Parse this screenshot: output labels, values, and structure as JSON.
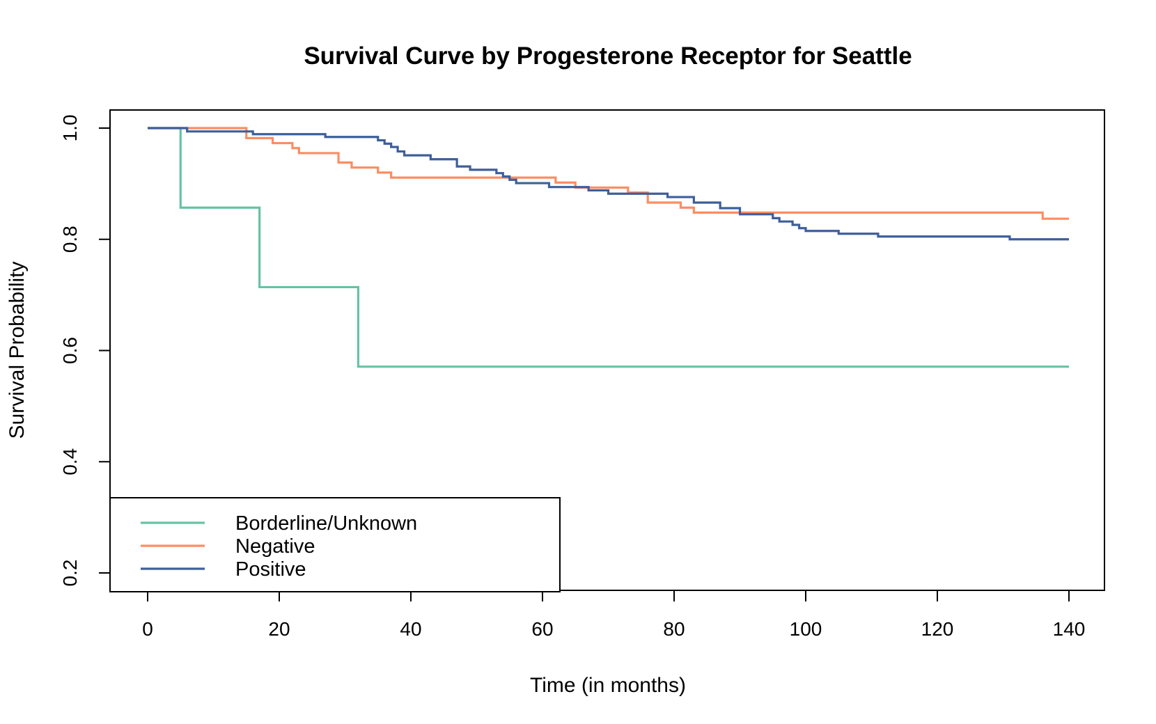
{
  "chart_data": {
    "type": "line",
    "step": true,
    "title": "Survival Curve by Progesterone Receptor for Seattle",
    "xlabel": "Time (in months)",
    "ylabel": "Survival Probability",
    "xlim": [
      0,
      140
    ],
    "ylim": [
      0.2,
      1.0
    ],
    "x_ticks": [
      0,
      20,
      40,
      60,
      80,
      100,
      120,
      140
    ],
    "y_ticks": [
      0.2,
      0.4,
      0.6,
      0.8,
      1.0
    ],
    "x_tick_labels": [
      "0",
      "20",
      "40",
      "60",
      "80",
      "100",
      "120",
      "140"
    ],
    "y_tick_labels": [
      "0.2",
      "0.4",
      "0.6",
      "0.8",
      "1.0"
    ],
    "grid": false,
    "legend": {
      "position": "bottom-left"
    },
    "series": [
      {
        "name": "Borderline/Unknown",
        "color": "#66c2a5",
        "x": [
          0,
          5,
          17,
          32,
          140
        ],
        "y": [
          1.0,
          0.857,
          0.714,
          0.571,
          0.571
        ]
      },
      {
        "name": "Negative",
        "color": "#fc8d62",
        "x": [
          0,
          6,
          15,
          19,
          22,
          23,
          29,
          31,
          35,
          37,
          62,
          65,
          73,
          76,
          81,
          83,
          91,
          136,
          140
        ],
        "y": [
          1.0,
          1.0,
          0.982,
          0.973,
          0.964,
          0.955,
          0.938,
          0.929,
          0.92,
          0.911,
          0.902,
          0.893,
          0.884,
          0.866,
          0.857,
          0.848,
          0.848,
          0.837,
          0.837
        ]
      },
      {
        "name": "Positive",
        "color": "#3d5f99",
        "x": [
          0,
          6,
          16,
          27,
          35,
          36,
          37,
          38,
          39,
          43,
          47,
          49,
          53,
          54,
          55,
          56,
          61,
          67,
          70,
          79,
          83,
          87,
          90,
          95,
          96,
          98,
          99,
          100,
          105,
          111,
          131,
          140
        ],
        "y": [
          1.0,
          0.994,
          0.989,
          0.984,
          0.978,
          0.972,
          0.966,
          0.958,
          0.951,
          0.944,
          0.931,
          0.925,
          0.919,
          0.913,
          0.907,
          0.901,
          0.894,
          0.888,
          0.882,
          0.876,
          0.866,
          0.856,
          0.845,
          0.838,
          0.832,
          0.826,
          0.82,
          0.815,
          0.81,
          0.805,
          0.8,
          0.8
        ]
      }
    ]
  }
}
